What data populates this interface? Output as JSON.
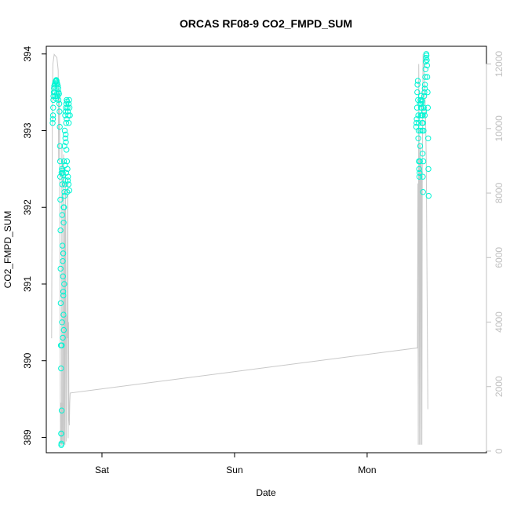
{
  "chart_data": {
    "type": "scatter",
    "title": "ORCAS RF08-9 CO2_FMPD_SUM",
    "xlabel": "Date",
    "ylabel": "CO2_FMPD_SUM",
    "ylim": [
      388.8,
      394.1
    ],
    "y2lim": [
      -50,
      12550
    ],
    "xlim": [
      -0.42,
      2.9
    ],
    "x_ticks": [
      {
        "label": "Sat",
        "x": 0
      },
      {
        "label": "Sun",
        "x": 1
      },
      {
        "label": "Mon",
        "x": 2
      }
    ],
    "y_ticks": [
      389,
      390,
      391,
      392,
      393,
      394
    ],
    "y2_ticks": [
      0,
      2000,
      4000,
      6000,
      8000,
      10000,
      12000
    ],
    "colors": {
      "points": "#00f5d4",
      "altitude": "#c8c8c8",
      "axis": "#000000",
      "right_axis": "#c0c0c0"
    },
    "series": [
      {
        "type": "scatter",
        "axis": "left",
        "points": [
          [
            -0.372,
            393.1
          ],
          [
            -0.37,
            393.15
          ],
          [
            -0.369,
            393.2
          ],
          [
            -0.368,
            393.3
          ],
          [
            -0.367,
            393.4
          ],
          [
            -0.366,
            393.45
          ],
          [
            -0.364,
            393.5
          ],
          [
            -0.362,
            393.55
          ],
          [
            -0.36,
            393.58
          ],
          [
            -0.357,
            393.6
          ],
          [
            -0.354,
            393.62
          ],
          [
            -0.351,
            393.64
          ],
          [
            -0.348,
            393.65
          ],
          [
            -0.345,
            393.66
          ],
          [
            -0.342,
            393.65
          ],
          [
            -0.339,
            393.62
          ],
          [
            -0.336,
            393.6
          ],
          [
            -0.333,
            393.58
          ],
          [
            -0.33,
            393.55
          ],
          [
            -0.327,
            393.5
          ],
          [
            -0.324,
            393.48
          ],
          [
            -0.358,
            393.5
          ],
          [
            -0.352,
            393.45
          ],
          [
            -0.346,
            393.42
          ],
          [
            -0.34,
            393.48
          ],
          [
            -0.334,
            393.45
          ],
          [
            -0.328,
            393.4
          ],
          [
            -0.322,
            393.35
          ],
          [
            -0.32,
            393.25
          ],
          [
            -0.318,
            393.05
          ],
          [
            -0.317,
            392.8
          ],
          [
            -0.316,
            392.6
          ],
          [
            -0.315,
            392.4
          ],
          [
            -0.314,
            392.1
          ],
          [
            -0.313,
            391.7
          ],
          [
            -0.312,
            391.2
          ],
          [
            -0.311,
            390.75
          ],
          [
            -0.31,
            390.2
          ],
          [
            -0.309,
            389.9
          ],
          [
            -0.308,
            389.05
          ],
          [
            -0.307,
            388.9
          ],
          [
            -0.306,
            388.92
          ],
          [
            -0.305,
            392.45
          ],
          [
            -0.302,
            392.5
          ],
          [
            -0.299,
            392.48
          ],
          [
            -0.296,
            392.45
          ],
          [
            -0.293,
            392.42
          ],
          [
            -0.3,
            391.9
          ],
          [
            -0.298,
            391.5
          ],
          [
            -0.296,
            391.3
          ],
          [
            -0.294,
            391.1
          ],
          [
            -0.292,
            390.9
          ],
          [
            -0.29,
            390.6
          ],
          [
            -0.288,
            390.4
          ],
          [
            -0.295,
            390.3
          ],
          [
            -0.301,
            390.5
          ],
          [
            -0.303,
            390.2
          ],
          [
            -0.292,
            391.4
          ],
          [
            -0.289,
            391.8
          ],
          [
            -0.286,
            392.0
          ],
          [
            -0.283,
            392.2
          ],
          [
            -0.28,
            392.3
          ],
          [
            -0.277,
            392.35
          ],
          [
            -0.287,
            392.6
          ],
          [
            -0.284,
            392.8
          ],
          [
            -0.281,
            393.0
          ],
          [
            -0.278,
            393.2
          ],
          [
            -0.275,
            393.25
          ],
          [
            -0.272,
            393.3
          ],
          [
            -0.269,
            393.35
          ],
          [
            -0.266,
            393.4
          ],
          [
            -0.263,
            393.38
          ],
          [
            -0.26,
            393.3
          ],
          [
            -0.257,
            393.25
          ],
          [
            -0.254,
            393.2
          ],
          [
            -0.251,
            393.35
          ],
          [
            -0.248,
            393.4
          ],
          [
            -0.245,
            393.3
          ],
          [
            -0.242,
            393.2
          ],
          [
            -0.276,
            392.9
          ],
          [
            -0.272,
            392.85
          ],
          [
            -0.268,
            392.75
          ],
          [
            -0.264,
            392.6
          ],
          [
            -0.26,
            392.5
          ],
          [
            -0.256,
            392.4
          ],
          [
            -0.252,
            392.3
          ],
          [
            -0.262,
            392.2
          ],
          [
            -0.258,
            392.35
          ],
          [
            -0.27,
            393.1
          ],
          [
            -0.266,
            393.15
          ],
          [
            -0.25,
            393.1
          ],
          [
            -0.246,
            392.22
          ],
          [
            -0.274,
            392.95
          ],
          [
            -0.278,
            392.55
          ],
          [
            -0.282,
            392.15
          ],
          [
            -0.285,
            391.0
          ],
          [
            -0.291,
            390.85
          ],
          [
            -0.304,
            389.35
          ],
          [
            -0.307,
            389.05
          ],
          [
            -0.289,
            392.0
          ],
          [
            -0.3,
            392.3
          ],
          [
            -0.27,
            392.45
          ],
          [
            2.37,
            393.05
          ],
          [
            2.372,
            393.1
          ],
          [
            2.374,
            393.15
          ],
          [
            2.376,
            393.3
          ],
          [
            2.378,
            393.5
          ],
          [
            2.38,
            393.6
          ],
          [
            2.382,
            393.65
          ],
          [
            2.384,
            393.4
          ],
          [
            2.386,
            393.2
          ],
          [
            2.388,
            393.0
          ],
          [
            2.39,
            392.6
          ],
          [
            2.392,
            392.5
          ],
          [
            2.394,
            392.4
          ],
          [
            2.396,
            392.45
          ],
          [
            2.398,
            392.6
          ],
          [
            2.4,
            392.8
          ],
          [
            2.402,
            393.0
          ],
          [
            2.404,
            393.2
          ],
          [
            2.406,
            393.3
          ],
          [
            2.408,
            393.35
          ],
          [
            2.41,
            393.3
          ],
          [
            2.412,
            393.2
          ],
          [
            2.414,
            393.1
          ],
          [
            2.416,
            393.0
          ],
          [
            2.418,
            392.7
          ],
          [
            2.42,
            392.4
          ],
          [
            2.422,
            392.2
          ],
          [
            2.424,
            392.6
          ],
          [
            2.426,
            393.0
          ],
          [
            2.428,
            393.3
          ],
          [
            2.43,
            393.45
          ],
          [
            2.432,
            393.5
          ],
          [
            2.434,
            393.55
          ],
          [
            2.436,
            393.6
          ],
          [
            2.438,
            393.7
          ],
          [
            2.44,
            393.8
          ],
          [
            2.442,
            393.9
          ],
          [
            2.444,
            393.95
          ],
          [
            2.446,
            394.0
          ],
          [
            2.448,
            393.98
          ],
          [
            2.45,
            393.92
          ],
          [
            2.452,
            393.85
          ],
          [
            2.454,
            393.7
          ],
          [
            2.456,
            393.5
          ],
          [
            2.458,
            393.3
          ],
          [
            2.46,
            392.9
          ],
          [
            2.462,
            392.5
          ],
          [
            2.464,
            392.15
          ],
          [
            2.398,
            393.35
          ],
          [
            2.402,
            393.4
          ],
          [
            2.406,
            393.45
          ],
          [
            2.41,
            393.4
          ],
          [
            2.414,
            393.38
          ],
          [
            2.418,
            393.2
          ],
          [
            2.422,
            393.1
          ],
          [
            2.426,
            393.3
          ],
          [
            2.43,
            393.25
          ],
          [
            2.434,
            393.2
          ],
          [
            2.39,
            393.1
          ],
          [
            2.386,
            392.9
          ]
        ]
      },
      {
        "type": "line",
        "axis": "right",
        "points": [
          [
            -0.38,
            3500
          ],
          [
            -0.374,
            11000
          ],
          [
            -0.37,
            12000
          ],
          [
            -0.36,
            12300
          ],
          [
            -0.34,
            12200
          ],
          [
            -0.33,
            11800
          ],
          [
            -0.327,
            9000
          ],
          [
            -0.324,
            11200
          ],
          [
            -0.32,
            10500
          ],
          [
            -0.317,
            6000
          ],
          [
            -0.314,
            1500
          ],
          [
            -0.312,
            200
          ],
          [
            -0.31,
            1500
          ],
          [
            -0.308,
            200
          ],
          [
            -0.306,
            1500
          ],
          [
            -0.304,
            200
          ],
          [
            -0.302,
            9500
          ],
          [
            -0.299,
            1500
          ],
          [
            -0.297,
            200
          ],
          [
            -0.295,
            1500
          ],
          [
            -0.293,
            300
          ],
          [
            -0.29,
            9200
          ],
          [
            -0.287,
            1500
          ],
          [
            -0.285,
            200
          ],
          [
            -0.283,
            1500
          ],
          [
            -0.281,
            7500
          ],
          [
            -0.279,
            200
          ],
          [
            -0.276,
            8500
          ],
          [
            -0.273,
            7000
          ],
          [
            -0.27,
            300
          ],
          [
            -0.265,
            4200
          ],
          [
            -0.262,
            3500
          ],
          [
            -0.258,
            8300
          ],
          [
            -0.255,
            400
          ],
          [
            -0.252,
            4000
          ],
          [
            -0.249,
            1000
          ],
          [
            -0.246,
            800
          ],
          [
            -0.243,
            1500
          ],
          [
            -0.24,
            1800
          ],
          [
            2.38,
            3200
          ],
          [
            2.383,
            8300
          ],
          [
            2.386,
            200
          ],
          [
            2.389,
            12000
          ],
          [
            2.392,
            9500
          ],
          [
            2.395,
            200
          ],
          [
            2.398,
            9000
          ],
          [
            2.401,
            9500
          ],
          [
            2.404,
            200
          ],
          [
            2.407,
            9000
          ],
          [
            2.41,
            8500
          ],
          [
            2.413,
            200
          ],
          [
            2.416,
            9000
          ],
          [
            2.419,
            10500
          ],
          [
            2.422,
            12300
          ],
          [
            2.428,
            12000
          ],
          [
            2.434,
            11200
          ],
          [
            2.44,
            10500
          ],
          [
            2.446,
            9000
          ],
          [
            2.452,
            5000
          ],
          [
            2.458,
            1300
          ]
        ]
      }
    ]
  }
}
